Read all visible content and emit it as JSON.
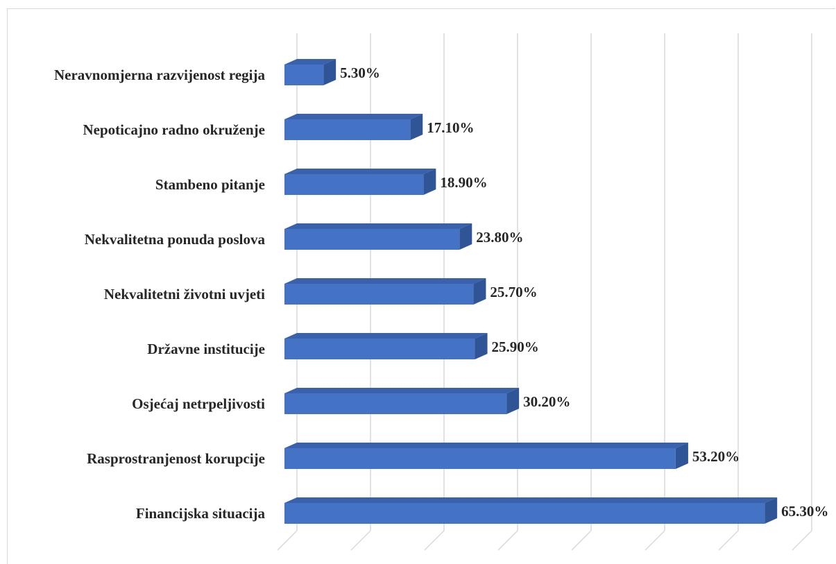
{
  "chart_data": {
    "type": "bar",
    "orientation": "horizontal",
    "style": "3d",
    "categories": [
      "Neravnomjerna razvijenost regija",
      "Nepoticajno radno okruženje",
      "Stambeno pitanje",
      "Nekvalitetna ponuda poslova",
      "Nekvalitetni životni uvjeti",
      "Državne institucije",
      "Osjećaj netrpeljivosti",
      "Rasprostranjenost korupcije",
      "Financijska situacija"
    ],
    "values": [
      5.3,
      17.1,
      18.9,
      23.8,
      25.7,
      25.9,
      30.2,
      53.2,
      65.3
    ],
    "data_labels": [
      "5.30%",
      "17.10%",
      "18.90%",
      "23.80%",
      "25.70%",
      "25.90%",
      "30.20%",
      "53.20%",
      "65.30%"
    ],
    "xlim": [
      0,
      70
    ],
    "grid": true,
    "colors": {
      "bar_front": "#4472c4",
      "bar_top": "#3a62ac",
      "bar_side": "#2f5597",
      "grid": "#d9d9d9"
    }
  }
}
